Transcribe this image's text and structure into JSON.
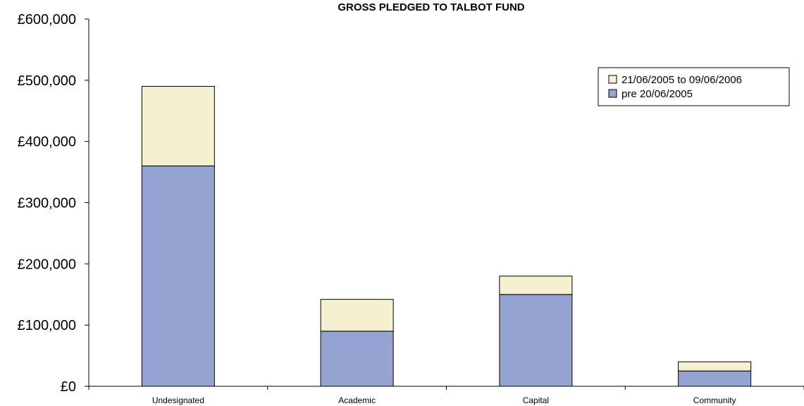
{
  "chart_data": {
    "type": "bar",
    "stacked": true,
    "title": "GROSS PLEDGED TO TALBOT FUND",
    "xlabel": "",
    "ylabel": "",
    "categories": [
      "Undesignated",
      "Academic",
      "Capital",
      "Community"
    ],
    "series": [
      {
        "name": "pre 20/06/2005",
        "values": [
          360000,
          90000,
          150000,
          25000
        ],
        "color": "#94a3d2"
      },
      {
        "name": "21/06/2005 to 09/06/2006",
        "values": [
          130000,
          52000,
          30000,
          15000
        ],
        "color": "#f5f0d0"
      }
    ],
    "ylim": [
      0,
      600000
    ],
    "yticks": [
      0,
      100000,
      200000,
      300000,
      400000,
      500000,
      600000
    ],
    "ytick_labels": [
      "£0",
      "£100,000",
      "£200,000",
      "£300,000",
      "£400,000",
      "£500,000",
      "£600,000"
    ],
    "grid": false,
    "legend": "top-right",
    "legend_order": [
      "21/06/2005 to 09/06/2006",
      "pre 20/06/2005"
    ]
  }
}
